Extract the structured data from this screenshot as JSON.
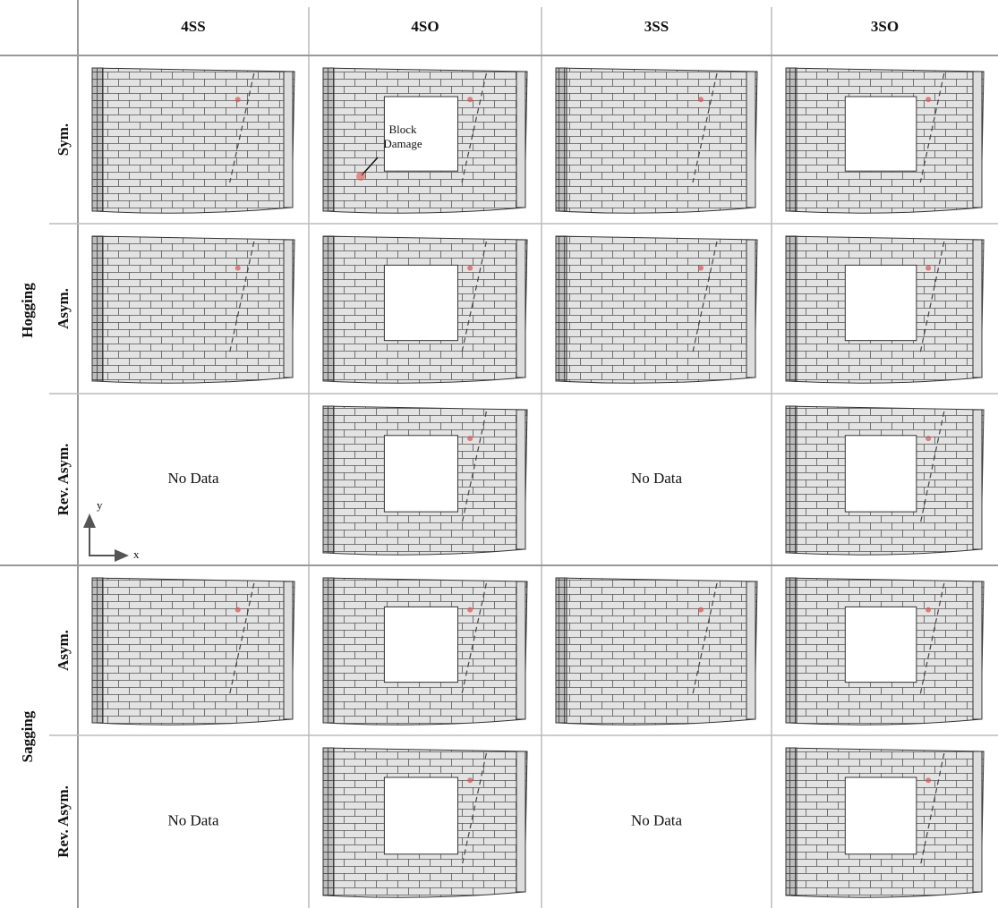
{
  "header": {
    "columns": [
      "4SS",
      "4SO",
      "3SS",
      "3SO"
    ]
  },
  "groups": [
    {
      "label": "Hogging",
      "rows": [
        {
          "label": "Sym.",
          "cells": [
            null,
            null,
            null,
            null
          ]
        },
        {
          "label": "Asym.",
          "cells": [
            null,
            null,
            null,
            null
          ]
        },
        {
          "label": "Rev. Asym.",
          "cells": [
            "No Data",
            null,
            "No Data",
            null
          ]
        }
      ]
    },
    {
      "label": "Sagging",
      "rows": [
        {
          "label": "Asym.",
          "cells": [
            null,
            null,
            null,
            null
          ]
        },
        {
          "label": "Rev. Asym.",
          "cells": [
            "No Data",
            null,
            "No Data",
            null
          ]
        }
      ]
    }
  ],
  "annotation": {
    "lines": [
      "Block",
      "Damage"
    ]
  },
  "axes": {
    "y": "y",
    "x": "x"
  }
}
